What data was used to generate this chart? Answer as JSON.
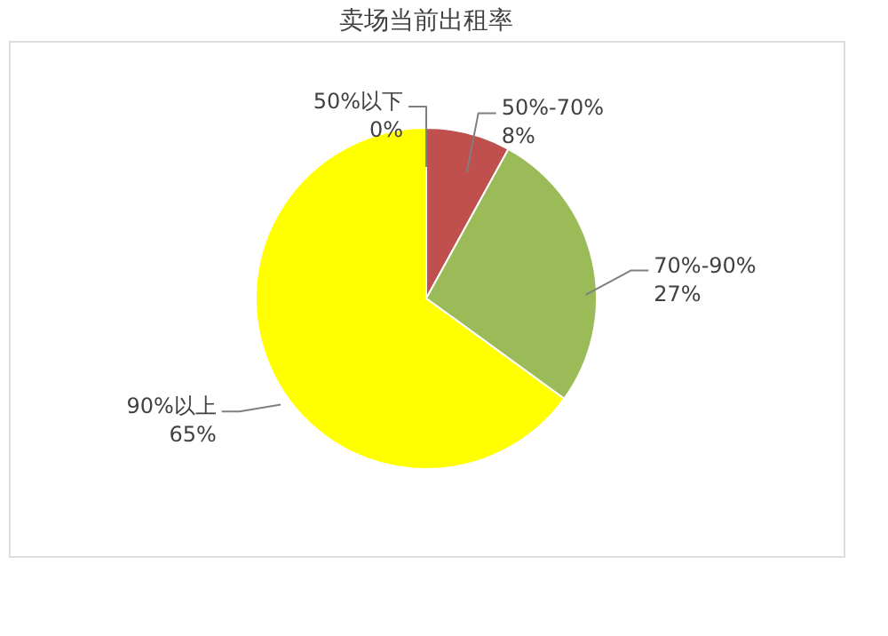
{
  "chart_data": {
    "type": "pie",
    "title": "卖场当前出租率",
    "categories": [
      "50%以下",
      "50%-70%",
      "70%-90%",
      "90%以上"
    ],
    "values": [
      0,
      8,
      27,
      65
    ],
    "value_labels": [
      "0%",
      "8%",
      "27%",
      "65%"
    ],
    "colors": [
      "#4f81bd",
      "#c0504d",
      "#9bbb59",
      "#ffff00"
    ],
    "legend": false
  }
}
